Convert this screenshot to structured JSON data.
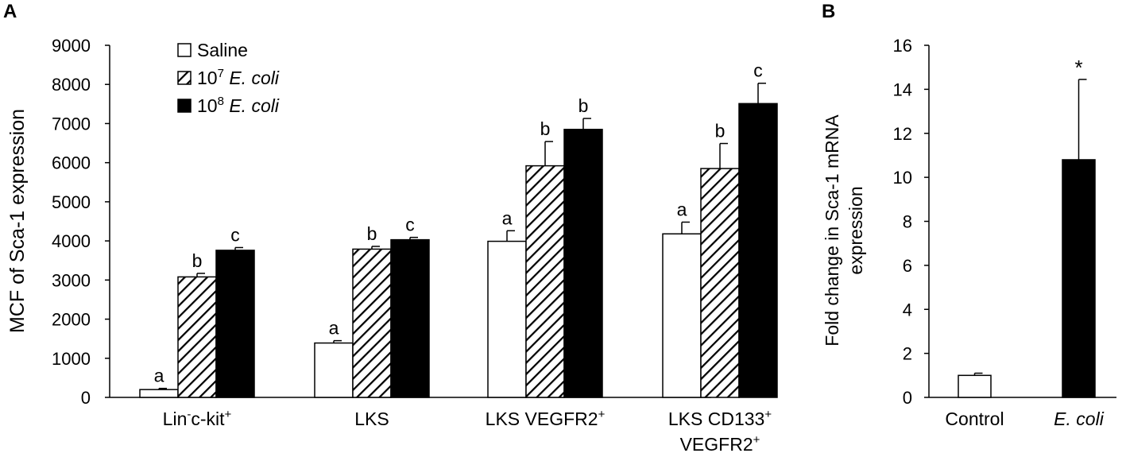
{
  "chart_data": [
    {
      "panel": "A",
      "type": "bar",
      "ylabel": "MCF of Sca-1 expression",
      "ylim": [
        0,
        9000
      ],
      "yticks": [
        "0",
        "1000",
        "2000",
        "3000",
        "4000",
        "5000",
        "6000",
        "7000",
        "8000",
        "9000"
      ],
      "grid": false,
      "legend_position": "top-left",
      "categories": [
        {
          "main": "Lin",
          "sup": "-",
          "rest": "c-kit",
          "sup2": "+"
        },
        {
          "main": "LKS",
          "sup": "",
          "rest": "",
          "sup2": ""
        },
        {
          "main": "LKS VEGFR2",
          "sup": "+",
          "rest": "",
          "sup2": ""
        },
        {
          "main": "LKS CD133",
          "sup": "+",
          "rest": "",
          "sup2": "",
          "line2": "VEGFR2",
          "line2sup": "+"
        }
      ],
      "series": [
        {
          "name": "Saline",
          "pre": "",
          "exp": "",
          "italic": "",
          "fill": "white",
          "values": [
            200,
            1390,
            3990,
            4180
          ],
          "errors": [
            30,
            60,
            270,
            300
          ],
          "letters": [
            "a",
            "a",
            "a",
            "a"
          ]
        },
        {
          "name": "10^7 E. coli",
          "pre": "10",
          "exp": "7",
          "italic": "E. coli",
          "fill": "hatch",
          "values": [
            3080,
            3790,
            5920,
            5850
          ],
          "errors": [
            90,
            70,
            620,
            640
          ],
          "letters": [
            "b",
            "b",
            "b",
            "b"
          ]
        },
        {
          "name": "10^8 E. coli",
          "pre": "10",
          "exp": "8",
          "italic": "E. coli",
          "fill": "black",
          "values": [
            3760,
            4030,
            6850,
            7510
          ],
          "errors": [
            70,
            60,
            280,
            520
          ],
          "letters": [
            "c",
            "c",
            "b",
            "c"
          ]
        }
      ]
    },
    {
      "panel": "B",
      "type": "bar",
      "ylabel_lines": [
        "Fold change in Sca-1 mRNA",
        "expression"
      ],
      "ylim": [
        0,
        16
      ],
      "yticks": [
        "0",
        "2",
        "4",
        "6",
        "8",
        "10",
        "12",
        "14",
        "16"
      ],
      "grid": false,
      "categories": [
        "Control",
        "E. coli"
      ],
      "category_italic": [
        false,
        true
      ],
      "values": [
        1.0,
        10.8
      ],
      "errors": [
        0.1,
        3.65
      ],
      "fills": [
        "white",
        "black"
      ],
      "annotations": [
        "",
        "*"
      ]
    }
  ]
}
